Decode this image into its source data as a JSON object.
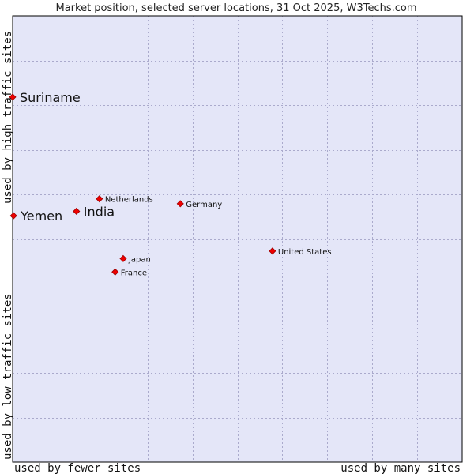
{
  "chart_data": {
    "type": "scatter",
    "title": "Market position, selected server locations, 31 Oct 2025, W3Techs.com",
    "xlabel_left": "used by fewer sites",
    "xlabel_right": "used by many sites",
    "ylabel_bottom": "used by low traffic sites",
    "ylabel_top": "used by high traffic sites",
    "xlim": [
      0,
      100
    ],
    "ylim": [
      0,
      100
    ],
    "grid": true,
    "colors": {
      "plot_bg": "#e4e6f8",
      "grid": "#aaaacc",
      "point": "#ee0000",
      "point_stroke": "#990000"
    },
    "points": [
      {
        "name": "Suriname",
        "x": 0.0,
        "y": 81.8,
        "emphasis": true
      },
      {
        "name": "Yemen",
        "x": 0.2,
        "y": 55.2,
        "emphasis": true
      },
      {
        "name": "India",
        "x": 14.2,
        "y": 56.2,
        "emphasis": true
      },
      {
        "name": "Netherlands",
        "x": 19.3,
        "y": 59.0,
        "emphasis": false
      },
      {
        "name": "Germany",
        "x": 37.3,
        "y": 57.9,
        "emphasis": false
      },
      {
        "name": "United States",
        "x": 57.8,
        "y": 47.3,
        "emphasis": false
      },
      {
        "name": "Japan",
        "x": 24.6,
        "y": 45.6,
        "emphasis": false
      },
      {
        "name": "France",
        "x": 22.8,
        "y": 42.6,
        "emphasis": false
      }
    ]
  }
}
